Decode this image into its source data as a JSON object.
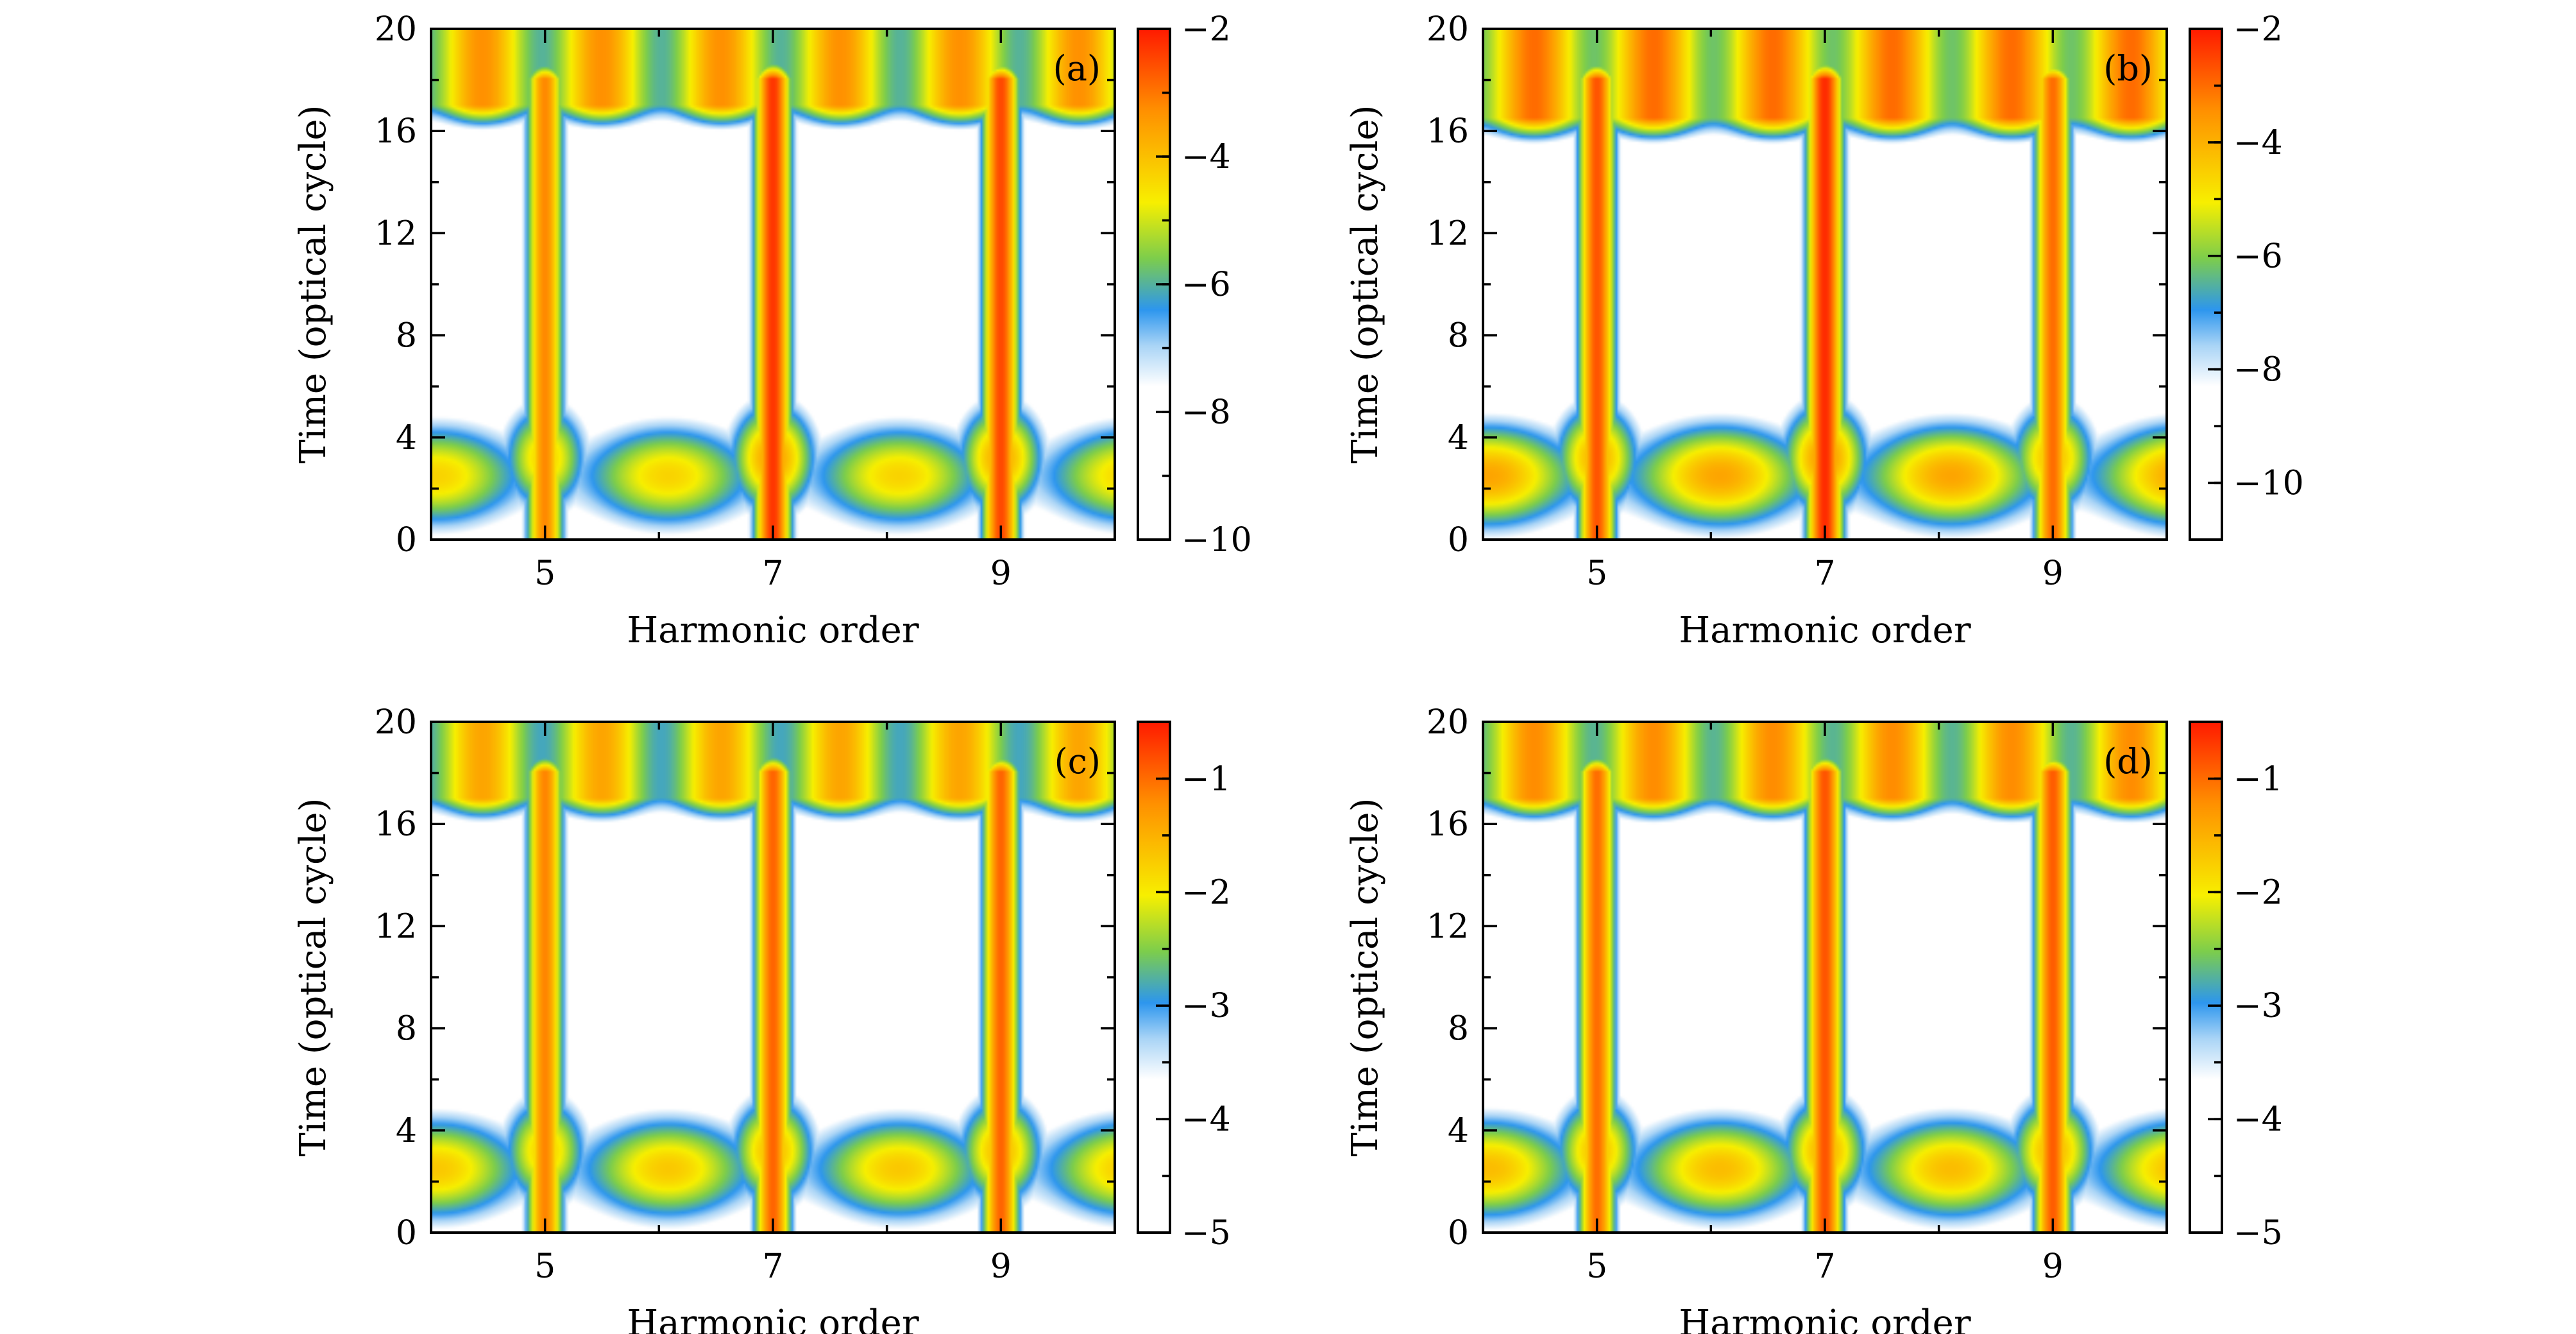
{
  "figure": {
    "colors": {
      "white": "#ffffff",
      "light_blue": "#a9d4f6",
      "blue": "#2d96ee",
      "green": "#7ccd4c",
      "yellow": "#f7ef00",
      "orange": "#ff9000",
      "red": "#ff1a00"
    }
  },
  "chart_data": [
    {
      "type": "heatmap",
      "panel_label": "(a)",
      "xlabel": "Harmonic order",
      "ylabel": "Time (optical cycle)",
      "xlim": [
        4,
        10
      ],
      "ylim": [
        0,
        20
      ],
      "x_ticks": [
        5,
        7,
        9
      ],
      "y_ticks": [
        0,
        4,
        8,
        12,
        16,
        20
      ],
      "colorbar": {
        "range": [
          -10,
          -2
        ],
        "ticks": [
          -2,
          -4,
          -6,
          -8,
          -10
        ],
        "tick_labels": [
          "−2",
          "−4",
          "−6",
          "−8",
          "−10"
        ]
      },
      "harmonic_columns": [
        {
          "order": 5,
          "peak": -3.2,
          "t_start": 0,
          "t_end": 19
        },
        {
          "order": 7,
          "peak": -2.3,
          "t_start": 0,
          "t_end": 19
        },
        {
          "order": 9,
          "peak": -2.5,
          "t_start": 0,
          "t_end": 19
        }
      ],
      "top_band": {
        "t_from": 15.5,
        "level": -3.3
      },
      "bottom_band": {
        "t_to": 5,
        "level": -4.3
      }
    },
    {
      "type": "heatmap",
      "panel_label": "(b)",
      "xlabel": "Harmonic order",
      "ylabel": "Time (optical cycle)",
      "xlim": [
        4,
        10
      ],
      "ylim": [
        0,
        20
      ],
      "x_ticks": [
        5,
        7,
        9
      ],
      "y_ticks": [
        0,
        4,
        8,
        12,
        16,
        20
      ],
      "colorbar": {
        "range": [
          -11,
          -2
        ],
        "ticks": [
          -2,
          -4,
          -6,
          -8,
          -10
        ],
        "tick_labels": [
          "−2",
          "−4",
          "−6",
          "−8",
          "−10"
        ]
      },
      "harmonic_columns": [
        {
          "order": 5,
          "peak": -2.7,
          "t_start": 0,
          "t_end": 19
        },
        {
          "order": 7,
          "peak": -2.2,
          "t_start": 0,
          "t_end": 19
        },
        {
          "order": 9,
          "peak": -3.0,
          "t_start": 0,
          "t_end": 19
        }
      ],
      "top_band": {
        "t_from": 15,
        "level": -3.0
      },
      "bottom_band": {
        "t_to": 5,
        "level": -3.8
      }
    },
    {
      "type": "heatmap",
      "panel_label": "(c)",
      "xlabel": "Harmonic order",
      "ylabel": "Time (optical cycle)",
      "xlim": [
        4,
        10
      ],
      "ylim": [
        0,
        20
      ],
      "x_ticks": [
        5,
        7,
        9
      ],
      "y_ticks": [
        0,
        4,
        8,
        12,
        16,
        20
      ],
      "colorbar": {
        "range": [
          -5,
          -0.5
        ],
        "ticks": [
          -1,
          -2,
          -3,
          -4,
          -5
        ],
        "tick_labels": [
          "−1",
          "−2",
          "−3",
          "−4",
          "−5"
        ]
      },
      "harmonic_columns": [
        {
          "order": 5,
          "peak": -1.15,
          "t_start": 0,
          "t_end": 19
        },
        {
          "order": 7,
          "peak": -0.95,
          "t_start": 0,
          "t_end": 19
        },
        {
          "order": 9,
          "peak": -0.95,
          "t_start": 0,
          "t_end": 19
        }
      ],
      "top_band": {
        "t_from": 15.5,
        "level": -1.4
      },
      "bottom_band": {
        "t_to": 5,
        "level": -1.7
      }
    },
    {
      "type": "heatmap",
      "panel_label": "(d)",
      "xlabel": "Harmonic order",
      "ylabel": "Time (optical cycle)",
      "xlim": [
        4,
        10
      ],
      "ylim": [
        0,
        20
      ],
      "x_ticks": [
        5,
        7,
        9
      ],
      "y_ticks": [
        0,
        4,
        8,
        12,
        16,
        20
      ],
      "colorbar": {
        "range": [
          -5,
          -0.5
        ],
        "ticks": [
          -1,
          -2,
          -3,
          -4,
          -5
        ],
        "tick_labels": [
          "−1",
          "−2",
          "−3",
          "−4",
          "−5"
        ]
      },
      "harmonic_columns": [
        {
          "order": 5,
          "peak": -1.0,
          "t_start": 0,
          "t_end": 19
        },
        {
          "order": 7,
          "peak": -0.85,
          "t_start": 0,
          "t_end": 19
        },
        {
          "order": 9,
          "peak": -0.9,
          "t_start": 0,
          "t_end": 19
        }
      ],
      "top_band": {
        "t_from": 15.5,
        "level": -1.2
      },
      "bottom_band": {
        "t_to": 5,
        "level": -1.6
      }
    }
  ]
}
